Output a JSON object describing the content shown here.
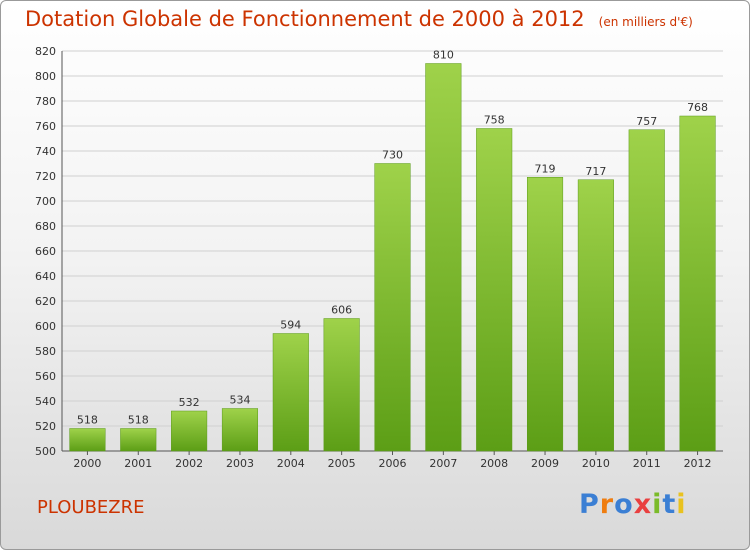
{
  "chart_data": {
    "type": "bar",
    "title": "Dotation Globale de Fonctionnement de 2000 à 2012",
    "subtitle": "(en milliers d'€)",
    "categories": [
      "2000",
      "2001",
      "2002",
      "2003",
      "2004",
      "2005",
      "2006",
      "2007",
      "2008",
      "2009",
      "2010",
      "2011",
      "2012"
    ],
    "values": [
      518,
      518,
      532,
      534,
      594,
      606,
      730,
      810,
      758,
      719,
      717,
      757,
      768
    ],
    "xlabel": "",
    "ylabel": "",
    "ylim": [
      500,
      820
    ],
    "yticks": [
      500,
      520,
      540,
      560,
      580,
      600,
      620,
      640,
      660,
      680,
      700,
      720,
      740,
      760,
      780,
      800,
      820
    ],
    "grid": true,
    "bar_color": "#7cbf2f",
    "bar_color_light": "#9fd24a",
    "bar_color_dark": "#5c9e16"
  },
  "commune": "PLOUBEZRE",
  "logo": {
    "letters": [
      "P",
      "r",
      "o",
      "x",
      "i",
      "t",
      "i"
    ],
    "colors": [
      "#3b7fd4",
      "#ef7d10",
      "#3b7fd4",
      "#e94040",
      "#7bbb2a",
      "#3b7fd4",
      "#e9c21f"
    ]
  }
}
